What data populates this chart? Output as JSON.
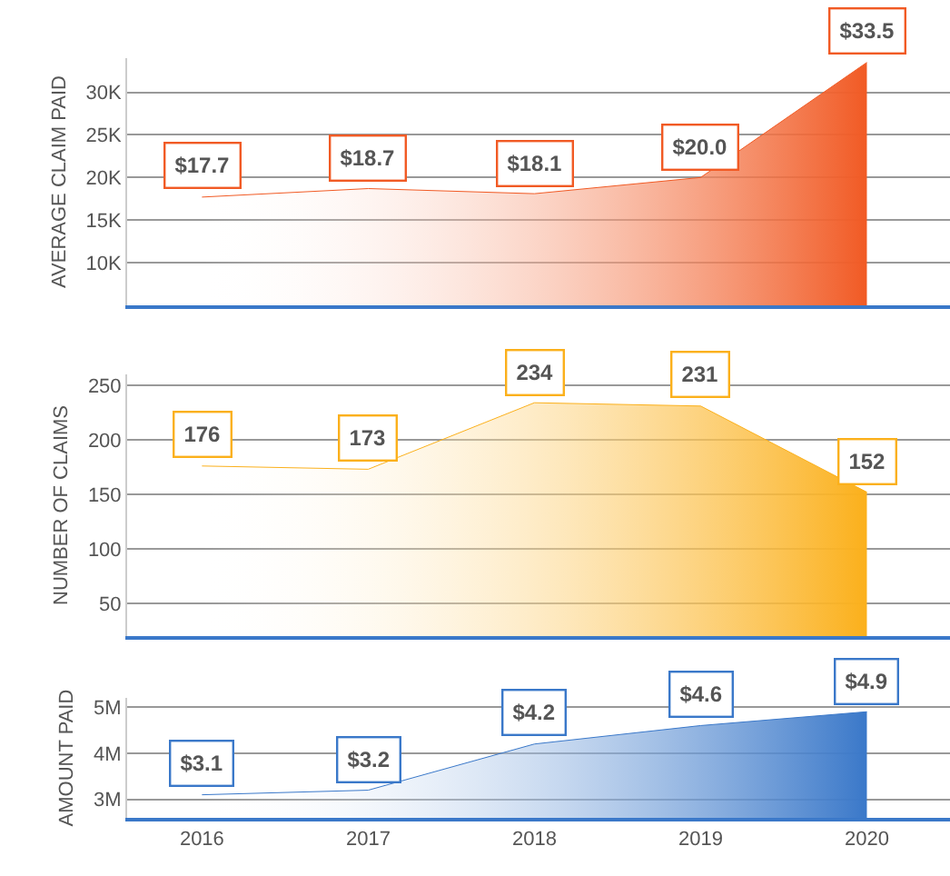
{
  "chart_data": [
    {
      "type": "area",
      "ylabel": "AVERAGE CLAIM PAID",
      "categories": [
        "2016",
        "2017",
        "2018",
        "2019",
        "2020"
      ],
      "values": [
        17.7,
        18.7,
        18.1,
        20.0,
        33.5
      ],
      "value_labels": [
        "$17.7",
        "$18.7",
        "$18.1",
        "$20.0",
        "$33.5"
      ],
      "color": "#f15a24",
      "ylim": [
        5,
        34
      ],
      "yticks": [
        {
          "value": 10,
          "label": "10K"
        },
        {
          "value": 15,
          "label": "15K"
        },
        {
          "value": 20,
          "label": "20K"
        },
        {
          "value": 25,
          "label": "25K"
        },
        {
          "value": 30,
          "label": "30K"
        }
      ],
      "grid": "y",
      "tick_labels": "y"
    },
    {
      "type": "area",
      "ylabel": "NUMBER OF CLAIMS",
      "categories": [
        "2016",
        "2017",
        "2018",
        "2019",
        "2020"
      ],
      "values": [
        176,
        173,
        234,
        231,
        152
      ],
      "data_labels": true,
      "color": "#fbb01b",
      "ylim": [
        20,
        260
      ],
      "yticks": [
        50,
        100,
        150,
        200,
        250
      ],
      "grid": "y",
      "tick_labels": "y"
    },
    {
      "type": "area",
      "ylabel": "AMOUNT PAID",
      "categories": [
        "2016",
        "2017",
        "2018",
        "2019",
        "2020"
      ],
      "values": [
        3.1,
        3.2,
        4.2,
        4.6,
        4.9
      ],
      "value_labels": [
        "$3.1",
        "$3.2",
        "$4.2",
        "$4.6",
        "$4.9"
      ],
      "color": "#3a78c9",
      "ylim": [
        2.6,
        5.2
      ],
      "yticks": [
        {
          "value": 3,
          "label": "3M"
        },
        {
          "value": 4,
          "label": "4M"
        },
        {
          "value": 5,
          "label": "5M"
        }
      ],
      "grid": "y"
    }
  ]
}
